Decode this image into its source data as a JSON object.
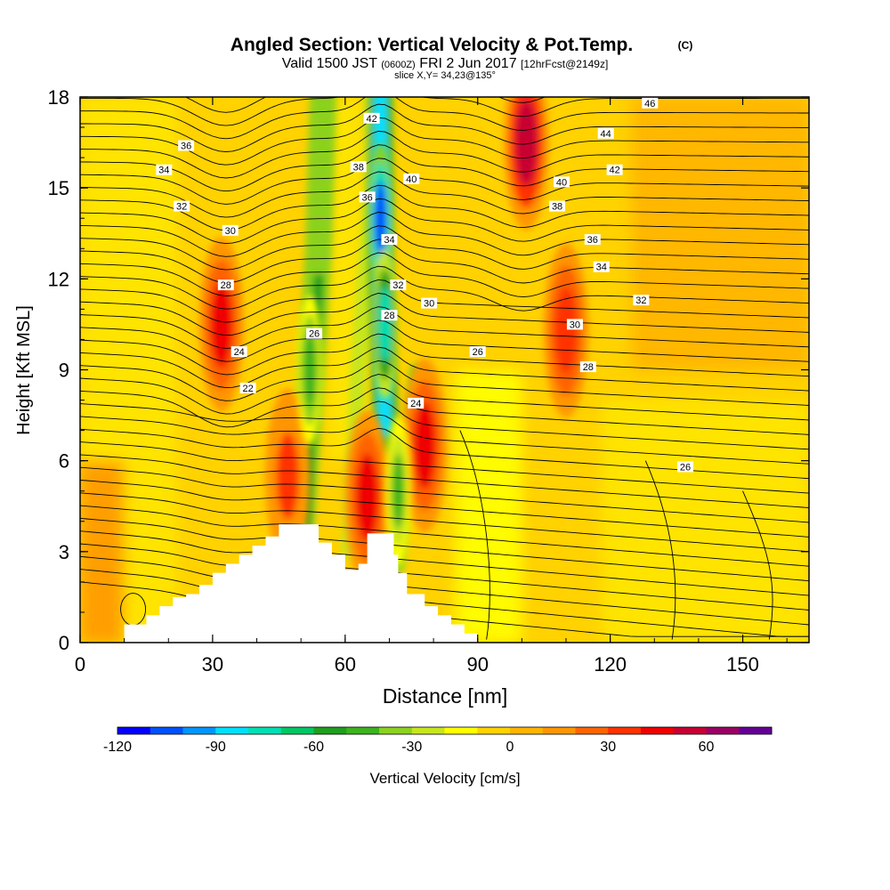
{
  "title": {
    "main": "Angled Section: Vertical Velocity & Pot.Temp.",
    "copyright": "(C)",
    "valid_prefix": "Valid 1500 JST",
    "valid_utc": "(0600Z)",
    "valid_date": "FRI 2 Jun 2017",
    "forecast": "[12hrFcst@2149z]",
    "slice": "slice X,Y= 34,23@135°"
  },
  "chart_data": {
    "type": "heatmap",
    "xlabel": "Distance [nm]",
    "ylabel": "Height [Kft MSL]",
    "xlim": [
      0,
      165
    ],
    "ylim": [
      0,
      18
    ],
    "xticks": [
      "0",
      "30",
      "60",
      "90",
      "120",
      "150"
    ],
    "yticks": [
      "0",
      "3",
      "6",
      "9",
      "12",
      "15",
      "18"
    ],
    "colorbar": {
      "label": "Vertical Velocity [cm/s]",
      "min": -120,
      "max": 80,
      "step": 10,
      "tick_labels": [
        "-120",
        "-90",
        "-60",
        "-30",
        "0",
        "30",
        "60"
      ],
      "colors": [
        "#0000ff",
        "#0050ff",
        "#0096ff",
        "#00e0ff",
        "#00e0b4",
        "#00c864",
        "#1ea01e",
        "#3cb41e",
        "#8cd21e",
        "#c8e61e",
        "#ffff00",
        "#ffd200",
        "#ffb400",
        "#ff9600",
        "#ff6400",
        "#ff3200",
        "#f00000",
        "#c80032",
        "#9b0064",
        "#640096"
      ]
    },
    "updraft_cores": [
      {
        "distance": 32,
        "height": 10.5,
        "value": 45
      },
      {
        "distance": 78,
        "height": 6.5,
        "value": 45
      },
      {
        "distance": 65,
        "height": 4.8,
        "value": 42
      },
      {
        "distance": 101,
        "height": 16.5,
        "value": 55
      },
      {
        "distance": 110,
        "height": 10.3,
        "value": 35
      },
      {
        "distance": 47,
        "height": 5.5,
        "value": 30
      }
    ],
    "downdraft_cores": [
      {
        "distance": 68,
        "height": 14,
        "value": -110
      },
      {
        "distance": 69,
        "height": 10.5,
        "value": -80
      },
      {
        "distance": 52,
        "height": 9,
        "value": -50
      },
      {
        "distance": 72,
        "height": 5,
        "value": -45
      }
    ],
    "contour_labels": [
      "46",
      "44",
      "42",
      "40",
      "38",
      "36",
      "34",
      "32",
      "30",
      "28",
      "26",
      "24",
      "22"
    ],
    "terrain": [
      [
        10,
        0.6
      ],
      [
        15,
        0.6
      ],
      [
        15,
        0.9
      ],
      [
        18,
        0.9
      ],
      [
        18,
        1.2
      ],
      [
        21,
        1.2
      ],
      [
        21,
        1.5
      ],
      [
        24,
        1.5
      ],
      [
        24,
        1.6
      ],
      [
        27,
        1.6
      ],
      [
        27,
        1.9
      ],
      [
        30,
        1.9
      ],
      [
        30,
        2.3
      ],
      [
        33,
        2.3
      ],
      [
        33,
        2.6
      ],
      [
        36,
        2.6
      ],
      [
        36,
        2.9
      ],
      [
        39,
        2.9
      ],
      [
        39,
        3.2
      ],
      [
        42,
        3.2
      ],
      [
        42,
        3.5
      ],
      [
        45,
        3.5
      ],
      [
        45,
        3.9
      ],
      [
        54,
        3.9
      ],
      [
        54,
        3.3
      ],
      [
        57,
        3.3
      ],
      [
        57,
        2.9
      ],
      [
        60,
        2.9
      ],
      [
        60,
        2.4
      ],
      [
        63,
        2.4
      ],
      [
        63,
        2.6
      ],
      [
        65,
        2.6
      ],
      [
        65,
        3.6
      ],
      [
        71,
        3.6
      ],
      [
        71,
        2.9
      ],
      [
        72,
        2.9
      ],
      [
        72,
        2.3
      ],
      [
        74,
        2.3
      ],
      [
        74,
        1.6
      ],
      [
        78,
        1.6
      ],
      [
        78,
        1.2
      ],
      [
        81,
        1.2
      ],
      [
        81,
        0.9
      ],
      [
        84,
        0.9
      ],
      [
        84,
        0.6
      ],
      [
        87,
        0.6
      ],
      [
        87,
        0.3
      ],
      [
        90,
        0.3
      ],
      [
        90,
        0
      ]
    ]
  }
}
